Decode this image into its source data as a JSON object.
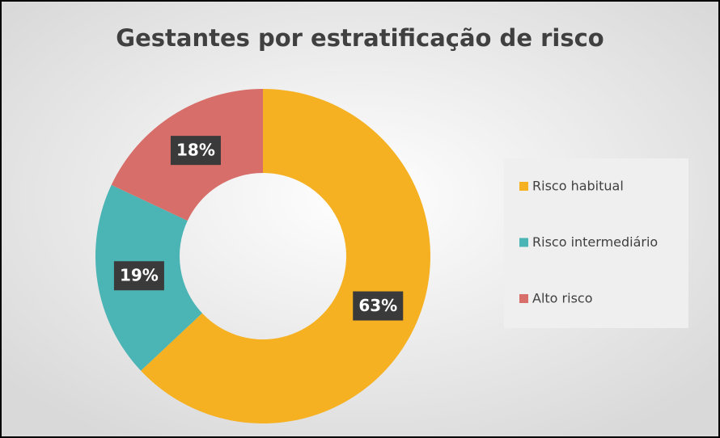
{
  "chart_data": {
    "type": "donut",
    "title": "Gestantes por estratificação de risco",
    "categories": [
      "Risco habitual",
      "Risco intermediário",
      "Alto risco"
    ],
    "values": [
      63,
      19,
      18
    ],
    "value_labels": [
      "63%",
      "19%",
      "18%"
    ],
    "colors": [
      "#f5b122",
      "#4bb4b5",
      "#d76e69"
    ],
    "legend": "right"
  }
}
